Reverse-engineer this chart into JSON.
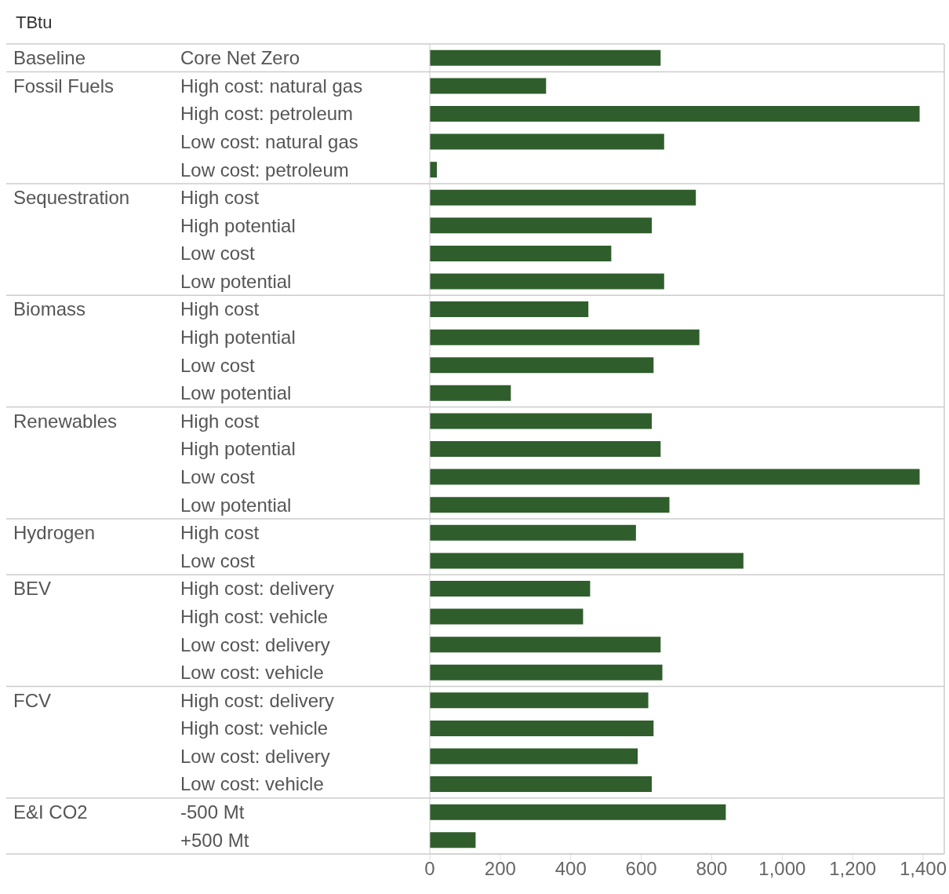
{
  "chart_data": {
    "type": "bar",
    "orientation": "horizontal",
    "stacked": true,
    "annotations": [
      "TBtu",
      "Baseline",
      "Fossil Fuels",
      "Sequestration",
      "Biomass",
      "Renewables",
      "Hydrogen",
      "BEV",
      "FCV",
      "E&I CO2"
    ],
    "categories": [
      "Core Net Zero",
      "High cost: natural gas",
      "High cost: petroleum",
      "Low cost: natural gas",
      "Low cost: petroleum",
      "High cost",
      "High potential",
      "Low cost",
      "Low potential",
      "High cost",
      "High potential",
      "Low cost",
      "Low potential",
      "High cost",
      "High potential",
      "Low cost",
      "Low potential",
      "High cost",
      "Low cost",
      "High cost: delivery",
      "High cost: vehicle",
      "Low cost: delivery",
      "Low cost: vehicle",
      "High cost: delivery",
      "High cost: vehicle",
      "Low cost: delivery",
      "Low cost: vehicle",
      "-500 Mt",
      "+500 Mt"
    ],
    "series": [
      {
        "color": "#2f5e2c",
        "values": [
          655,
          null,
          null,
          null,
          null,
          null,
          null,
          null,
          null,
          null,
          null,
          null,
          null,
          null,
          null,
          null,
          null,
          null,
          null,
          null,
          null,
          null,
          null,
          null,
          null,
          null,
          null,
          null,
          null
        ]
      },
      {
        "color": "#2f5e2c",
        "values": [
          null,
          330,
          1390,
          665,
          20,
          null,
          null,
          null,
          null,
          null,
          null,
          null,
          null,
          null,
          null,
          null,
          null,
          null,
          null,
          null,
          null,
          null,
          null,
          null,
          null,
          null,
          null,
          null,
          null
        ]
      },
      {
        "color": "#2f5e2c",
        "values": [
          null,
          null,
          null,
          null,
          null,
          755,
          630,
          515,
          665,
          null,
          null,
          null,
          null,
          null,
          null,
          null,
          null,
          null,
          null,
          null,
          null,
          null,
          null,
          null,
          null,
          null,
          null,
          null,
          null
        ]
      },
      {
        "color": "#2f5e2c",
        "values": [
          null,
          null,
          null,
          null,
          null,
          null,
          null,
          null,
          null,
          450,
          765,
          635,
          230,
          null,
          null,
          null,
          null,
          null,
          null,
          null,
          null,
          null,
          null,
          null,
          null,
          null,
          null,
          null,
          null
        ]
      },
      {
        "color": "#2f5e2c",
        "values": [
          null,
          null,
          null,
          null,
          null,
          null,
          null,
          null,
          null,
          null,
          null,
          null,
          null,
          630,
          655,
          1390,
          680,
          null,
          null,
          null,
          null,
          null,
          null,
          null,
          null,
          null,
          null,
          null,
          null
        ]
      },
      {
        "color": "#2f5e2c",
        "values": [
          null,
          null,
          null,
          null,
          null,
          null,
          null,
          null,
          null,
          null,
          null,
          null,
          null,
          null,
          null,
          null,
          null,
          585,
          890,
          null,
          null,
          null,
          null,
          null,
          null,
          null,
          null,
          null,
          null
        ]
      },
      {
        "color": "#2f5e2c",
        "values": [
          null,
          null,
          null,
          null,
          null,
          null,
          null,
          null,
          null,
          null,
          null,
          null,
          null,
          null,
          null,
          null,
          null,
          null,
          null,
          455,
          435,
          655,
          660,
          null,
          null,
          null,
          null,
          null,
          null
        ]
      },
      {
        "color": "#2f5e2c",
        "values": [
          null,
          null,
          null,
          null,
          null,
          null,
          null,
          null,
          null,
          null,
          null,
          null,
          null,
          null,
          null,
          null,
          null,
          null,
          null,
          null,
          null,
          null,
          null,
          620,
          635,
          590,
          630,
          null,
          null
        ]
      },
      {
        "color": "#2f5e2c",
        "values": [
          null,
          null,
          null,
          null,
          null,
          null,
          null,
          null,
          null,
          null,
          null,
          null,
          null,
          null,
          null,
          null,
          null,
          null,
          null,
          null,
          null,
          null,
          null,
          null,
          null,
          null,
          null,
          840,
          130
        ]
      }
    ],
    "xlim": [
      0,
      1460
    ],
    "xticks": [
      0,
      200,
      400,
      600,
      800,
      {
        "value": 1000,
        "label": "1,000"
      },
      {
        "value": 1200,
        "label": "1,200"
      },
      {
        "value": 1400,
        "label": "1,400"
      }
    ]
  }
}
